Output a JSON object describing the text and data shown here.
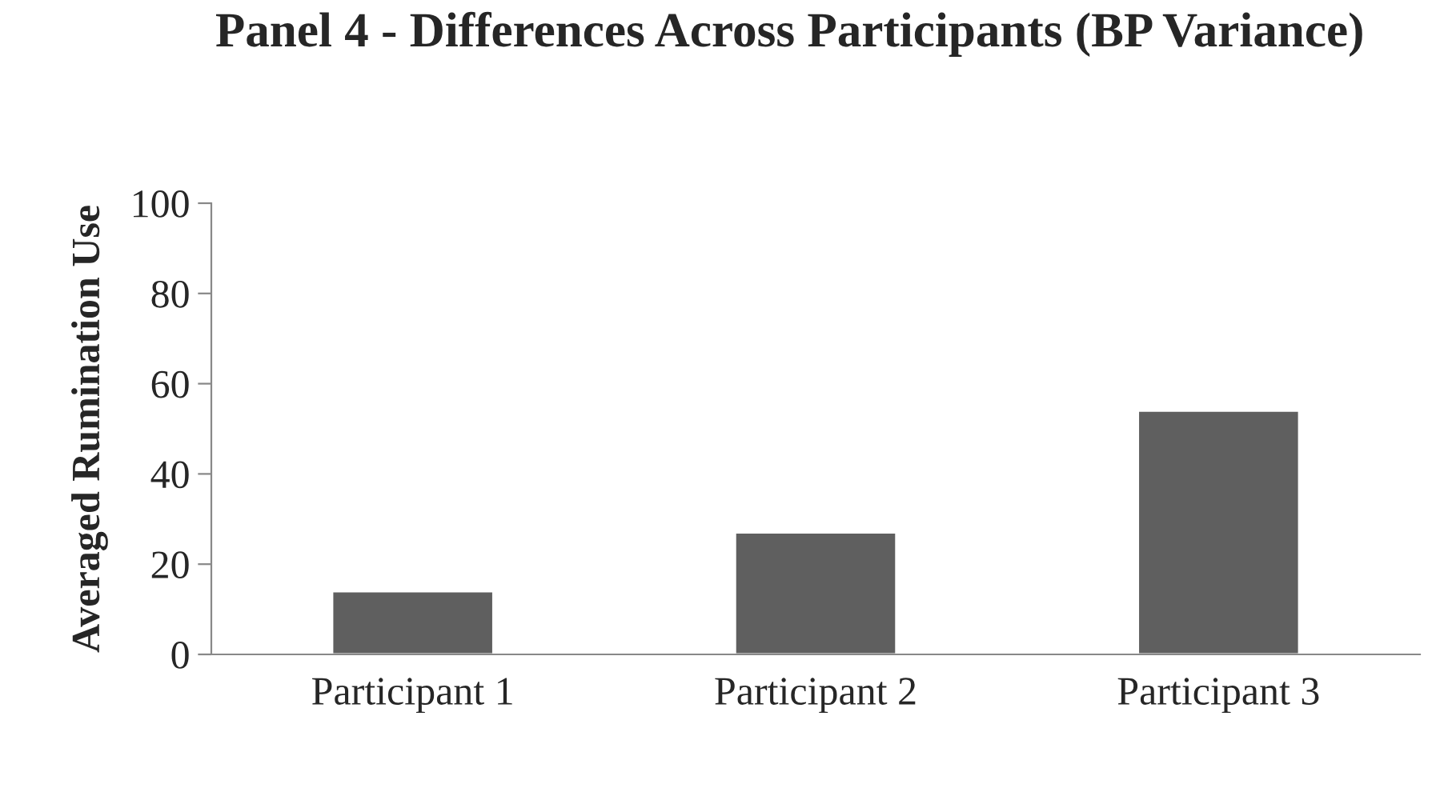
{
  "chart_data": {
    "type": "bar",
    "title": "Panel 4 - Differences Across Participants (BP Variance)",
    "ylabel": "Averaged Rumination Use",
    "categories": [
      "Participant 1",
      "Participant 2",
      "Participant 3"
    ],
    "values": [
      14,
      27,
      54
    ],
    "color": "#5f5f5f",
    "ylim": [
      0,
      100
    ],
    "yticks": [
      0,
      20,
      40,
      60,
      80,
      100
    ],
    "grid": false,
    "legend": false
  }
}
